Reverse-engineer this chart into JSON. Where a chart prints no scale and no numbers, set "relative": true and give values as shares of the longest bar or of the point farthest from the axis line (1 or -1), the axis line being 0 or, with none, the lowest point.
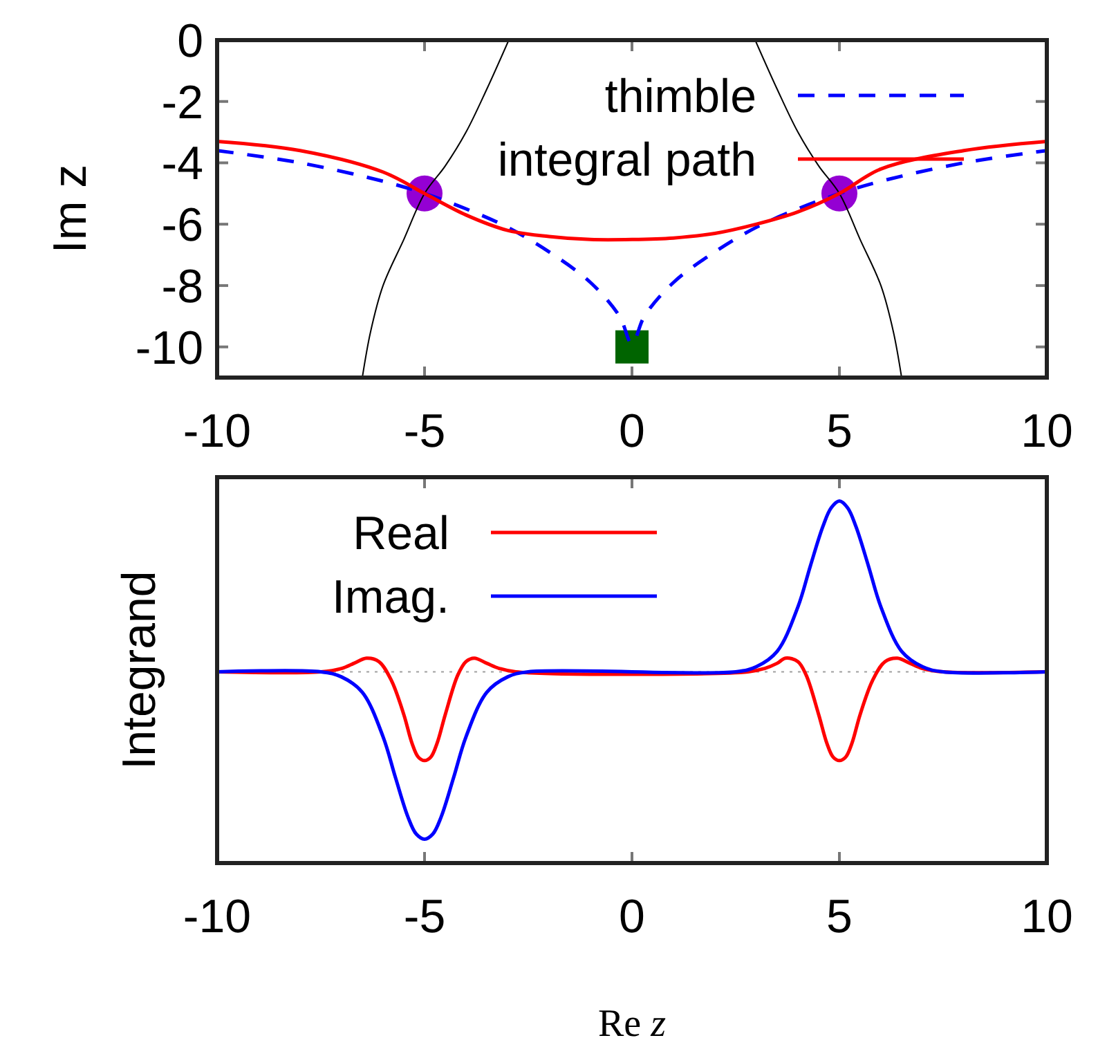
{
  "chart_data": [
    {
      "type": "line",
      "ylabel": "Im z",
      "xlim": [
        -10,
        10
      ],
      "xticks": [
        -10,
        -5,
        0,
        5,
        10
      ],
      "ylim": [
        -11,
        0
      ],
      "yticks": [
        0,
        -2,
        -4,
        -6,
        -8,
        -10
      ],
      "legend": "top right",
      "grid": false,
      "series": [
        {
          "color": "#000000",
          "x": [
            -2.97,
            -3.5,
            -4,
            -4.5,
            -5,
            -5.5,
            -6,
            -6.3,
            -6.5
          ],
          "values": [
            0,
            -1.6,
            -3,
            -4.1,
            -5,
            -6.5,
            -8,
            -9.5,
            -11
          ]
        },
        {
          "color": "#000000",
          "x": [
            2.97,
            3.5,
            4,
            4.5,
            5,
            5.5,
            6,
            6.3,
            6.5
          ],
          "values": [
            0,
            -1.6,
            -3,
            -4.1,
            -5,
            -6.5,
            -8,
            -9.5,
            -11
          ]
        },
        {
          "name": "thimble",
          "color": "#0000ff",
          "line_style": "dashed",
          "x": [
            -10,
            -8,
            -6,
            -5,
            -4,
            -3,
            -2,
            -1,
            -0.3,
            0,
            0.3,
            1,
            2,
            3,
            4,
            5,
            6,
            8,
            10
          ],
          "values": [
            -3.6,
            -4.0,
            -4.6,
            -5.0,
            -5.5,
            -6.1,
            -6.9,
            -7.9,
            -9.0,
            -9.9,
            -9.0,
            -7.9,
            -6.9,
            -6.1,
            -5.5,
            -5.0,
            -4.6,
            -4.0,
            -3.6
          ]
        },
        {
          "name": "integral path",
          "color": "#ff0000",
          "x": [
            -10,
            -8,
            -6,
            -5,
            -4,
            -3,
            -2,
            -1,
            0,
            1,
            2,
            3,
            4,
            5,
            6,
            8,
            10
          ],
          "values": [
            -3.3,
            -3.6,
            -4.3,
            -5.0,
            -5.7,
            -6.2,
            -6.4,
            -6.5,
            -6.5,
            -6.45,
            -6.3,
            -6.0,
            -5.6,
            -5.0,
            -4.2,
            -3.6,
            -3.3
          ]
        },
        {
          "type": "scatter",
          "marker": "circle",
          "color": "#9400d3",
          "x": [
            -5,
            5
          ],
          "values": [
            -5,
            -5
          ]
        },
        {
          "type": "scatter",
          "marker": "square",
          "color": "#006400",
          "x": [
            0
          ],
          "values": [
            -10
          ]
        }
      ]
    },
    {
      "type": "line",
      "ylabel": "Integrand",
      "xlabel": "Re z",
      "relative": true,
      "xlim": [
        -10,
        10
      ],
      "xticks": [
        -10,
        -5,
        0,
        5,
        10
      ],
      "tick_labels": "x",
      "legend": "top left",
      "grid": false,
      "ref_lines": [
        {
          "axis": "y",
          "value": 0,
          "color": "#a0a0a0",
          "line_style": "dotted"
        }
      ],
      "series": [
        {
          "name": "Real",
          "color": "#ff0000",
          "x": [
            -10,
            -7.5,
            -7,
            -6.7,
            -6.4,
            -6.1,
            -5.8,
            -5.5,
            -5.3,
            -5.15,
            -5,
            -4.85,
            -4.7,
            -4.5,
            -4.2,
            -4.0,
            -3.8,
            -3.5,
            -3.2,
            -2.8,
            2.8,
            3.2,
            3.5,
            3.7,
            4.0,
            4.2,
            4.5,
            4.7,
            4.85,
            5,
            5.15,
            5.3,
            5.5,
            5.8,
            6.1,
            6.4,
            6.7,
            7,
            7.5,
            10
          ],
          "values": [
            0,
            0,
            0.02,
            0.05,
            0.08,
            0.06,
            -0.05,
            -0.25,
            -0.42,
            -0.5,
            -0.52,
            -0.5,
            -0.42,
            -0.25,
            -0.02,
            0.06,
            0.08,
            0.05,
            0.02,
            0,
            0,
            0.02,
            0.05,
            0.08,
            0.06,
            -0.02,
            -0.25,
            -0.42,
            -0.5,
            -0.52,
            -0.5,
            -0.42,
            -0.25,
            -0.05,
            0.06,
            0.08,
            0.05,
            0.02,
            0,
            0
          ]
        },
        {
          "name": "Imag.",
          "color": "#0000ff",
          "x": [
            -10,
            -7.5,
            -7,
            -6.5,
            -6,
            -5.7,
            -5.4,
            -5.2,
            -5,
            -4.8,
            -4.6,
            -4.3,
            -4,
            -3.5,
            -3,
            -2.5,
            2.5,
            3,
            3.5,
            4,
            4.3,
            4.6,
            4.8,
            5,
            5.2,
            5.4,
            5.7,
            6,
            6.5,
            7,
            7.5,
            10
          ],
          "values": [
            0,
            0,
            -0.03,
            -0.12,
            -0.38,
            -0.62,
            -0.85,
            -0.95,
            -0.98,
            -0.95,
            -0.85,
            -0.62,
            -0.38,
            -0.12,
            -0.03,
            0,
            0,
            0.03,
            0.12,
            0.38,
            0.62,
            0.85,
            0.96,
            1.0,
            0.96,
            0.85,
            0.62,
            0.38,
            0.12,
            0.03,
            0,
            0
          ]
        }
      ]
    }
  ]
}
